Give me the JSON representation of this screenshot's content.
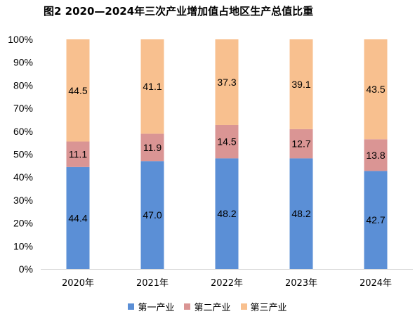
{
  "chart_data": {
    "type": "bar",
    "stacked": true,
    "percent": true,
    "title": "图2  2020—2024年三次产业增加值占地区生产总值比重",
    "categories": [
      "2020年",
      "2021年",
      "2022年",
      "2023年",
      "2024年"
    ],
    "y_ticks": [
      "0%",
      "10%",
      "20%",
      "30%",
      "40%",
      "50%",
      "60%",
      "70%",
      "80%",
      "90%",
      "100%"
    ],
    "ylim": [
      0,
      100
    ],
    "grid": false,
    "legend_position": "bottom",
    "series": [
      {
        "name": "第一产业",
        "color": "#5B8FD6",
        "values": [
          44.4,
          47.0,
          48.2,
          48.2,
          42.7
        ],
        "labels": [
          "44.4",
          "47.0",
          "48.2",
          "48.2",
          "42.7"
        ]
      },
      {
        "name": "第二产业",
        "color": "#DA9594",
        "values": [
          11.1,
          11.9,
          14.5,
          12.7,
          13.8
        ],
        "labels": [
          "11.1",
          "11.9",
          "14.5",
          "12.7",
          "13.8"
        ]
      },
      {
        "name": "第三产业",
        "color": "#F8C08F",
        "values": [
          44.5,
          41.1,
          37.3,
          39.1,
          43.5
        ],
        "labels": [
          "44.5",
          "41.1",
          "37.3",
          "39.1",
          "43.5"
        ]
      }
    ]
  }
}
